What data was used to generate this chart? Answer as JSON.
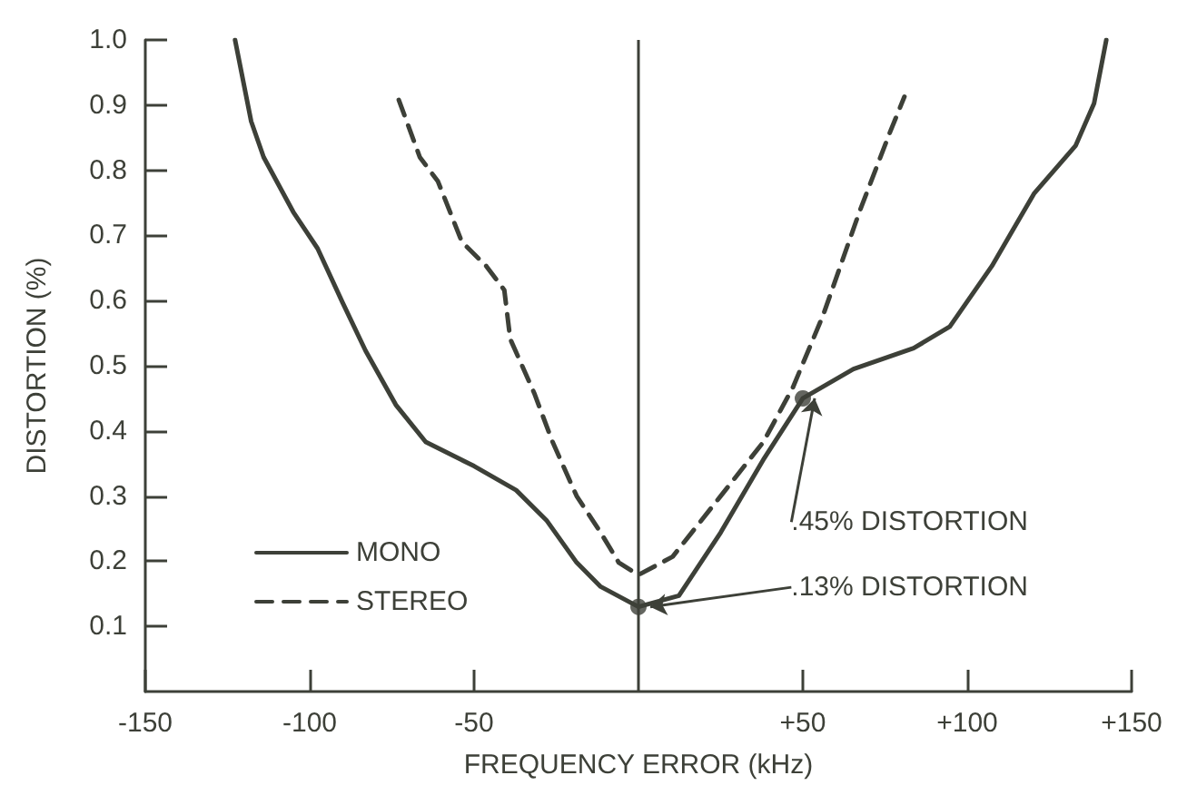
{
  "chart_data": {
    "type": "line",
    "xlabel": "FREQUENCY ERROR (kHz)",
    "ylabel": "DISTORTION (%)",
    "xlim": [
      -150,
      150
    ],
    "ylim": [
      0,
      1.0
    ],
    "xticks": [
      -150,
      -100,
      -50,
      {
        "value": 50,
        "label": "+50"
      },
      {
        "value": 100,
        "label": "+100"
      },
      {
        "value": 150,
        "label": "+150"
      }
    ],
    "yticks": [
      0.1,
      0.2,
      0.3,
      0.4,
      0.5,
      0.6,
      0.7,
      0.8,
      0.9,
      {
        "value": 1.0,
        "label": "1.0"
      }
    ],
    "grid": false,
    "legend": "bottom left",
    "marker": "none",
    "series": [
      {
        "name": "MONO",
        "color": "#3d4038",
        "line_style": "solid",
        "x": [
          -122.7,
          -117.8,
          -114,
          -105,
          -97.6,
          -90,
          -83,
          -73.8,
          -64.7,
          -50,
          -37.2,
          -28,
          -18.8,
          -11.5,
          0,
          12.3,
          25,
          38,
          50,
          65.4,
          83.7,
          94.7,
          107.5,
          120.3,
          133,
          138.6,
          142.3
        ],
        "values": [
          1.0,
          0.875,
          0.82,
          0.736,
          0.68,
          0.597,
          0.523,
          0.44,
          0.383,
          0.346,
          0.309,
          0.263,
          0.198,
          0.161,
          0.13,
          0.147,
          0.244,
          0.356,
          0.45,
          0.495,
          0.527,
          0.56,
          0.653,
          0.764,
          0.838,
          0.903,
          1.0
        ]
      },
      {
        "name": "STEREO",
        "color": "#3d4038",
        "line_style": "dashed",
        "x": [
          -72.9,
          -66.5,
          -61,
          -53.7,
          -46.3,
          -40.8,
          -39,
          -31.7,
          -26.2,
          -18.8,
          -11.5,
          -6,
          0,
          10.4,
          25,
          38,
          47,
          56.2,
          67.2,
          76.4,
          80.9
        ],
        "values": [
          0.908,
          0.82,
          0.783,
          0.69,
          0.653,
          0.616,
          0.541,
          0.458,
          0.384,
          0.3,
          0.244,
          0.198,
          0.179,
          0.207,
          0.3,
          0.383,
          0.467,
          0.578,
          0.736,
          0.857,
          0.913
        ]
      }
    ],
    "ref_lines": [
      {
        "axis": "x",
        "value": 0,
        "label": null,
        "color": "#3d4038",
        "line_style": "solid"
      }
    ],
    "annotations": [
      {
        "text": ".45% DISTORTION",
        "x": 50,
        "y": 0.45
      },
      {
        "text": ".13% DISTORTION",
        "x": 0,
        "y": 0.13
      }
    ]
  }
}
